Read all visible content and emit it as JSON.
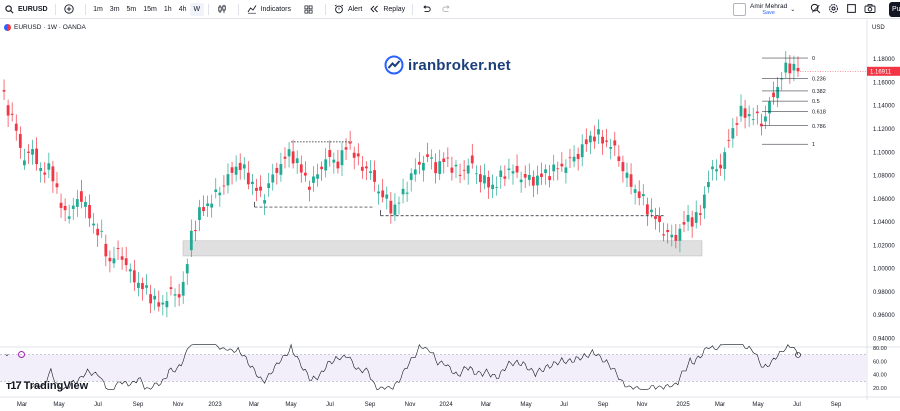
{
  "toolbar": {
    "symbol": "EURUSD",
    "timeframes": [
      "1m",
      "3m",
      "5m",
      "15m",
      "1h",
      "4h",
      "W"
    ],
    "active_timeframe": "W",
    "indicators_label": "Indicators",
    "alert_label": "Alert",
    "replay_label": "Replay",
    "user_name": "Amir Mehrad",
    "save_label": "Save",
    "publish_label": "Pu"
  },
  "legend": {
    "title": "EURUSD · 1W · OANDA"
  },
  "currency": "USD",
  "watermark": "iranbroker.net",
  "brand": "TradingView",
  "colors": {
    "up": "#22ab94",
    "down": "#f23645",
    "current_price_bg": "#f23645",
    "rsi_line": "#131722",
    "rsi_band": "#f3effa",
    "support_zone": "#e0e0e0",
    "accent": "#2962ff"
  },
  "chart_data": {
    "type": "candlestick",
    "current_price": "1.16911",
    "y_ticks": [
      "1.18000",
      "1.16000",
      "1.14000",
      "1.12000",
      "1.10000",
      "1.08000",
      "1.06000",
      "1.04000",
      "1.02000",
      "1.00000",
      "0.98000",
      "0.96000",
      "0.94000"
    ],
    "y_tick_values": [
      1.18,
      1.16,
      1.14,
      1.12,
      1.1,
      1.08,
      1.06,
      1.04,
      1.02,
      1.0,
      0.98,
      0.96,
      0.94
    ],
    "ylim": [
      0.934,
      1.196
    ],
    "x_ticks": [
      "Mar",
      "May",
      "Jul",
      "Sep",
      "Nov",
      "2023",
      "Mar",
      "May",
      "Jul",
      "Sep",
      "Nov",
      "2024",
      "Mar",
      "May",
      "Jul",
      "Sep",
      "Nov",
      "2025",
      "Mar",
      "May",
      "Jul",
      "Sep"
    ],
    "fib_labels": [
      "0",
      "0.236",
      "0.382",
      "0.5",
      "0.618",
      "0.786",
      "1"
    ],
    "fib_range": [
      1.1805,
      1.1065
    ],
    "rsi_ticks": [
      "80.00",
      "60.00",
      "40.00",
      "20.00"
    ],
    "rsi_tick_values": [
      80,
      60,
      40,
      20
    ],
    "rsi_band": [
      70,
      30
    ],
    "support_zone": [
      1.0105,
      1.0235
    ],
    "key_levels": [
      {
        "price": 1.1085,
        "start_week": 142,
        "end_week": 172,
        "style": "dotted"
      },
      {
        "price": 1.0525,
        "start_week": 124,
        "end_week": 183,
        "style": "dashed"
      },
      {
        "price": 1.045,
        "start_week": 186,
        "end_week": 325,
        "style": "dashed"
      }
    ]
  }
}
